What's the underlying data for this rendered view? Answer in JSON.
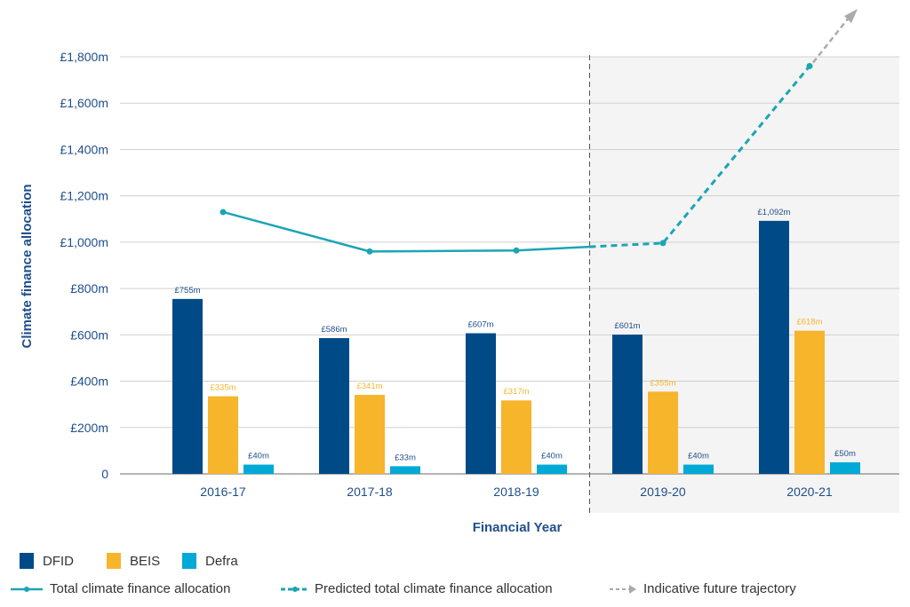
{
  "chart_data": {
    "type": "bar",
    "title": "",
    "xlabel": "Financial Year",
    "ylabel": "Climate finance allocation",
    "ylim": [
      0,
      1800
    ],
    "yticks": [
      0,
      200,
      400,
      600,
      800,
      1000,
      1200,
      1400,
      1600,
      1800
    ],
    "ytick_labels": [
      "0",
      "£200m",
      "£400m",
      "£600m",
      "£800m",
      "£1,000m",
      "£1,200m",
      "£1,400m",
      "£1,600m",
      "£1,800m"
    ],
    "categories": [
      "2016-17",
      "2017-18",
      "2018-19",
      "2019-20",
      "2020-21"
    ],
    "grid": "horizontal",
    "legend_placement": "bottom-left",
    "shaded_categories": [
      "2019-20",
      "2020-21"
    ],
    "series": [
      {
        "name": "DFID",
        "color": "#004b87",
        "values": [
          755,
          586,
          607,
          601,
          1092
        ],
        "labels": [
          "£755m",
          "£586m",
          "£607m",
          "£601m",
          "£1,092m"
        ]
      },
      {
        "name": "BEIS",
        "color": "#f7b52c",
        "values": [
          335,
          341,
          317,
          355,
          618
        ],
        "labels": [
          "£335m",
          "£341m",
          "£317m",
          "£355m",
          "£618m"
        ]
      },
      {
        "name": "Defra",
        "color": "#00a9d6",
        "values": [
          40,
          33,
          40,
          40,
          50
        ],
        "labels": [
          "£40m",
          "£33m",
          "£40m",
          "£40m",
          "£50m"
        ]
      }
    ],
    "lines": [
      {
        "name": "Total climate finance allocation",
        "style": "solid",
        "color": "#1ba5b5",
        "categories": [
          "2016-17",
          "2017-18",
          "2018-19"
        ],
        "values": [
          1130,
          960,
          964
        ]
      },
      {
        "name": "Predicted total climate finance allocation",
        "style": "dashed",
        "color": "#1ba5b5",
        "categories": [
          "2018-19",
          "2019-20",
          "2020-21"
        ],
        "values": [
          964,
          996,
          1760
        ]
      },
      {
        "name": "Indicative future trajectory",
        "style": "dashed-arrow",
        "color": "#aaaaaa"
      }
    ]
  }
}
